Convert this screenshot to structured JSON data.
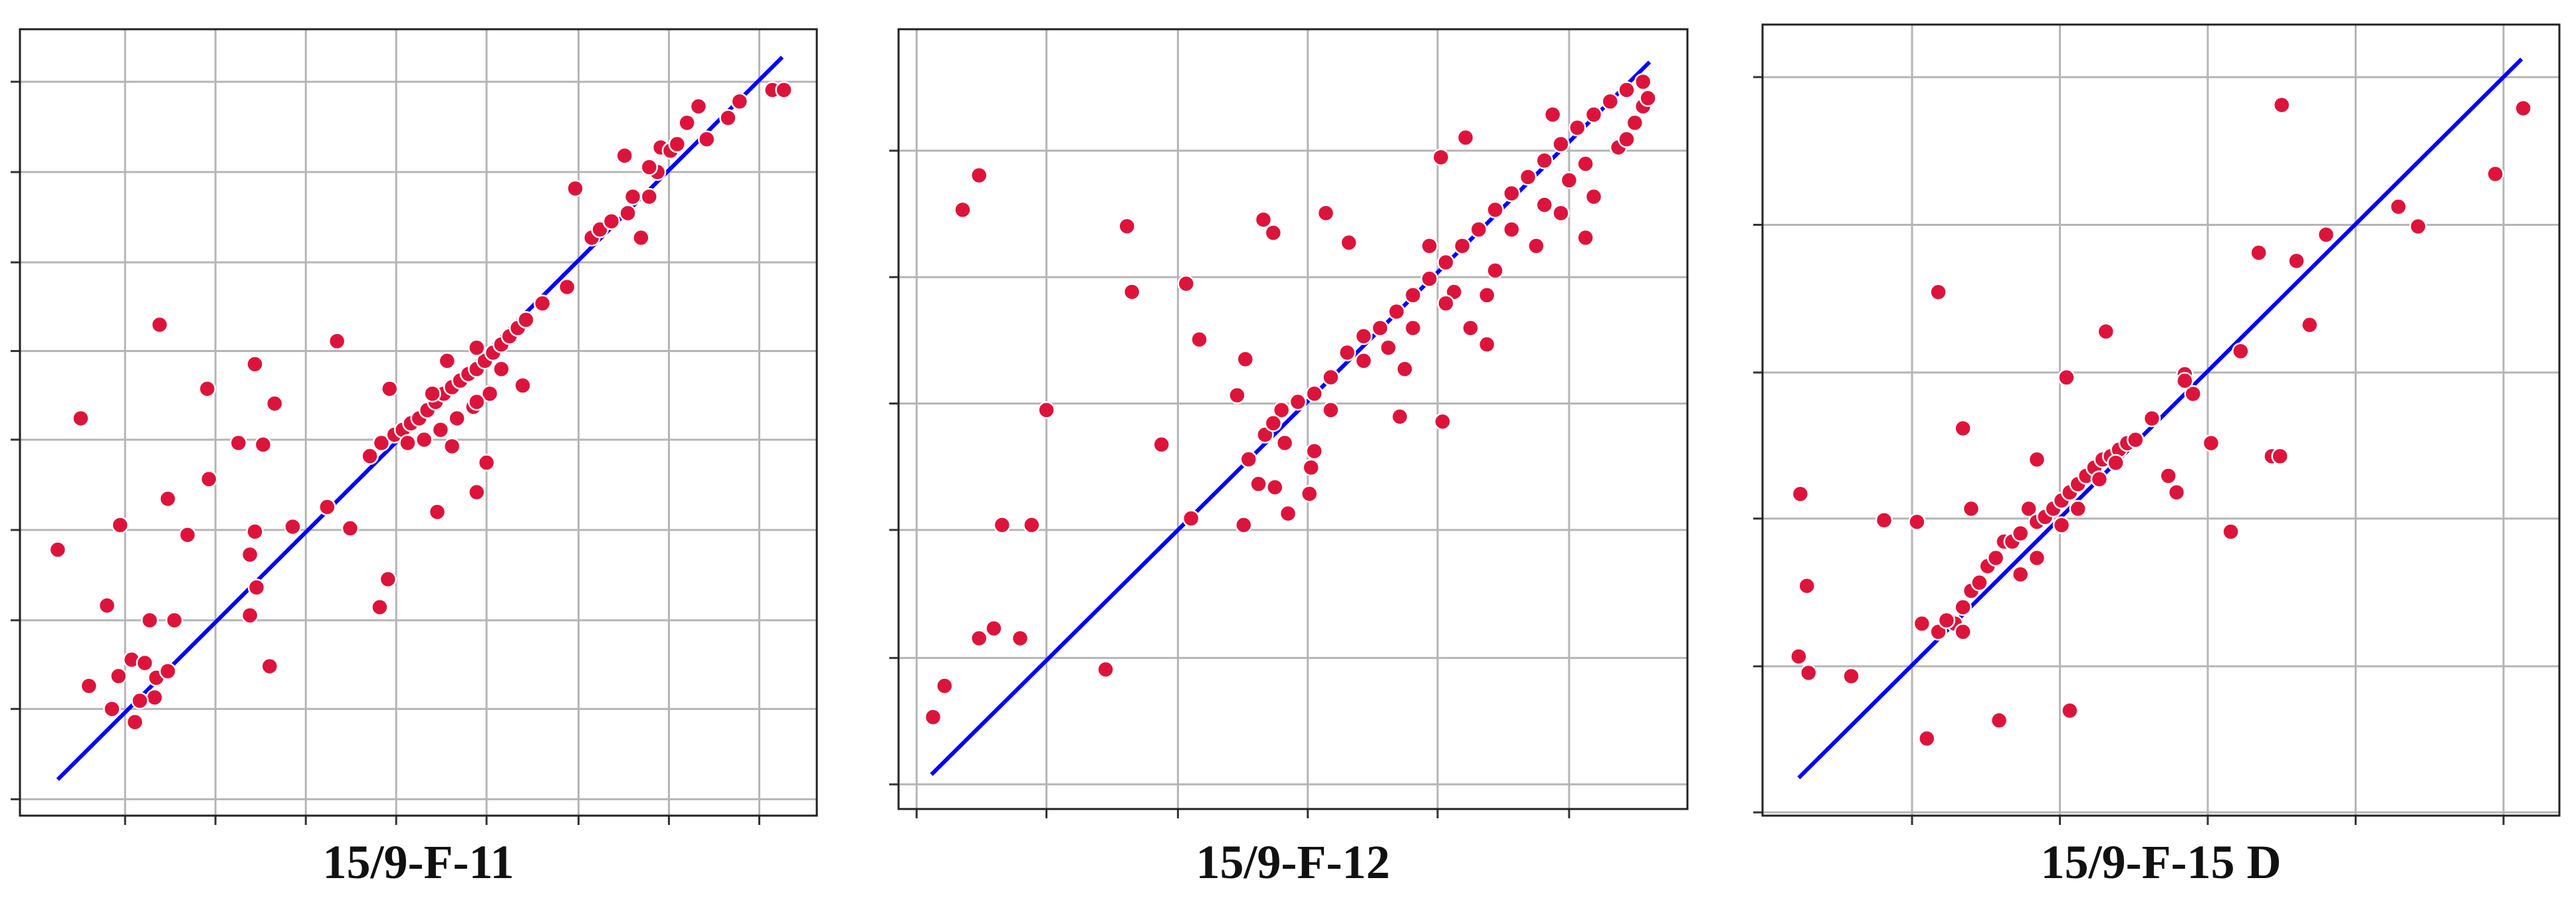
{
  "chart_data": [
    {
      "type": "scatter",
      "title": "15/9-F-11",
      "color": "#dc143c",
      "grid": true,
      "xlim": [
        0,
        485
      ],
      "ylim": [
        0,
        479
      ],
      "xticks": [
        64,
        119,
        174,
        229,
        284,
        340,
        395,
        450
      ],
      "yticks": [
        10,
        65,
        119,
        174,
        229,
        283,
        337,
        392,
        447
      ],
      "x": [
        23,
        37,
        53,
        61,
        85,
        114,
        115,
        90,
        102,
        143,
        155,
        133,
        148,
        143,
        140,
        140,
        144,
        152,
        193,
        166,
        187,
        201,
        225,
        224,
        219,
        79,
        94,
        42,
        60,
        68,
        76,
        83,
        90,
        56,
        70,
        82,
        73,
        213,
        220,
        228,
        233,
        238,
        243,
        248,
        253,
        258,
        263,
        268,
        273,
        278,
        283,
        288,
        293,
        298,
        303,
        308,
        246,
        256,
        266,
        276,
        286,
        260,
        278,
        293,
        251,
        236,
        278,
        254,
        284,
        278,
        263,
        306,
        318,
        333,
        338,
        348,
        353,
        360,
        368,
        373,
        378,
        383,
        388,
        390,
        396,
        400,
        406,
        413,
        418,
        431,
        438,
        458,
        465,
        370,
        383
      ],
      "values": [
        162,
        242,
        128,
        177,
        299,
        260,
        205,
        193,
        171,
        275,
        251,
        227,
        226,
        173,
        159,
        122,
        139,
        91,
        289,
        176,
        188,
        175,
        260,
        144,
        127,
        119,
        119,
        79,
        85,
        95,
        93,
        84,
        88,
        65,
        57,
        72,
        70,
        219,
        227,
        232,
        235,
        239,
        242,
        247,
        252,
        257,
        261,
        265,
        269,
        272,
        277,
        282,
        287,
        292,
        297,
        302,
        229,
        235,
        242,
        249,
        257,
        277,
        285,
        272,
        257,
        227,
        252,
        185,
        215,
        197,
        225,
        262,
        312,
        322,
        382,
        352,
        357,
        362,
        402,
        377,
        352,
        377,
        392,
        407,
        405,
        409,
        422,
        432,
        412,
        425,
        435,
        442,
        442,
        367,
        395
      ],
      "fit_line": {
        "x": [
          23,
          464
        ],
        "y": [
          22,
          462
        ],
        "color": "#0000ff"
      }
    },
    {
      "type": "scatter",
      "title": "15/9-F-12",
      "color": "#dc143c",
      "grid": true,
      "xlim": [
        0,
        480
      ],
      "ylim": [
        0,
        475
      ],
      "xticks": [
        11,
        90,
        170,
        249,
        328,
        408
      ],
      "yticks": [
        15,
        92,
        170,
        247,
        324,
        401
      ],
      "x": [
        21,
        28,
        39,
        49,
        49,
        58,
        63,
        74,
        81,
        90,
        126,
        139,
        142,
        160,
        175,
        178,
        183,
        206,
        210,
        211,
        222,
        228,
        229,
        237,
        250,
        260,
        274,
        305,
        331,
        330,
        345,
        213,
        223,
        233,
        243,
        253,
        263,
        273,
        283,
        293,
        303,
        313,
        323,
        333,
        343,
        353,
        363,
        373,
        383,
        393,
        403,
        413,
        423,
        433,
        443,
        453,
        228,
        253,
        251,
        298,
        308,
        338,
        358,
        363,
        373,
        388,
        403,
        408,
        418,
        423,
        438,
        448,
        453,
        418,
        393,
        358,
        348,
        333,
        313,
        219,
        235,
        263,
        283,
        323,
        398,
        443,
        456
      ],
      "values": [
        56,
        75,
        365,
        386,
        104,
        110,
        173,
        104,
        173,
        243,
        85,
        355,
        315,
        222,
        320,
        177,
        286,
        252,
        173,
        274,
        359,
        351,
        196,
        180,
        192,
        363,
        345,
        239,
        236,
        397,
        409,
        213,
        228,
        243,
        248,
        253,
        263,
        278,
        288,
        293,
        303,
        313,
        323,
        333,
        343,
        353,
        365,
        375,
        385,
        395,
        405,
        415,
        423,
        431,
        438,
        443,
        235,
        218,
        208,
        281,
        268,
        315,
        313,
        328,
        353,
        343,
        363,
        383,
        348,
        373,
        403,
        418,
        428,
        393,
        368,
        283,
        293,
        308,
        293,
        198,
        223,
        243,
        273,
        343,
        423,
        408,
        433
      ],
      "fit_line": {
        "x": [
          20,
          457
        ],
        "y": [
          21,
          455
        ],
        "color": "#0000ff"
      }
    },
    {
      "type": "scatter",
      "title": "15/9-F-15 D",
      "color": "#dc143c",
      "grid": true,
      "xlim": [
        0,
        485
      ],
      "ylim": [
        0,
        482
      ],
      "xticks": [
        91,
        181,
        271,
        361,
        451
      ],
      "yticks": [
        2,
        91,
        181,
        270,
        360,
        450
      ],
      "x": [
        23,
        27,
        22,
        28,
        54,
        74,
        94,
        100,
        107,
        122,
        144,
        187,
        185,
        209,
        257,
        273,
        285,
        302,
        310,
        315,
        316,
        325,
        333,
        343,
        387,
        399,
        446,
        463,
        127,
        147,
        162,
        167,
        97,
        107,
        117,
        122,
        127,
        132,
        137,
        142,
        152,
        157,
        167,
        172,
        177,
        182,
        187,
        192,
        197,
        202,
        207,
        212,
        217,
        222,
        227,
        167,
        157,
        182,
        192,
        205,
        215,
        247,
        252,
        237,
        262,
        291,
        257,
        122,
        112
      ],
      "values": [
        196,
        140,
        97,
        87,
        85,
        180,
        179,
        47,
        319,
        236,
        58,
        64,
        267,
        295,
        269,
        227,
        173,
        343,
        219,
        219,
        433,
        338,
        299,
        354,
        371,
        359,
        391,
        431,
        187,
        167,
        187,
        217,
        117,
        112,
        117,
        127,
        137,
        142,
        152,
        157,
        167,
        172,
        179,
        182,
        187,
        192,
        197,
        202,
        207,
        212,
        217,
        219,
        223,
        227,
        229,
        157,
        147,
        177,
        187,
        205,
        215,
        207,
        197,
        242,
        257,
        283,
        265,
        112,
        119
      ],
      "fit_line": {
        "x": [
          22,
          462
        ],
        "y": [
          23,
          461
        ],
        "color": "#0000ff"
      }
    }
  ]
}
